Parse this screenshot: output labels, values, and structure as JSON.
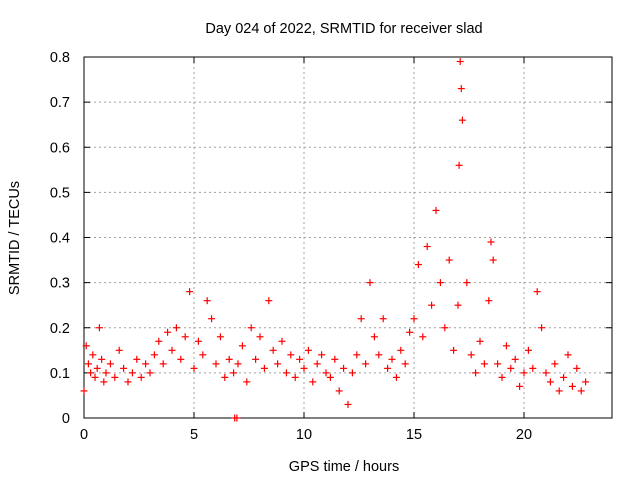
{
  "chart_data": {
    "type": "scatter",
    "title": "Day 024 of 2022, SRMTID for receiver slad",
    "xlabel": "GPS time / hours",
    "ylabel": "SRMTID / TECUs",
    "xlim": [
      0,
      24
    ],
    "ylim": [
      0,
      0.8
    ],
    "x_ticks": [
      0,
      5,
      10,
      15,
      20
    ],
    "x_tick_labels": [
      "0",
      "5",
      "10",
      "15",
      "20"
    ],
    "y_ticks": [
      0,
      0.1,
      0.2,
      0.3,
      0.4,
      0.5,
      0.6,
      0.7,
      0.8
    ],
    "y_tick_labels": [
      "0",
      "0.1",
      "0.2",
      "0.3",
      "0.4",
      "0.5",
      "0.6",
      "0.7",
      "0.8"
    ],
    "grid": true,
    "marker": "plus",
    "color": "#ff0000",
    "series": [
      {
        "name": "SRMTID",
        "x": [
          0.0,
          0.1,
          0.2,
          0.3,
          0.4,
          0.5,
          0.6,
          0.7,
          0.8,
          0.9,
          1.0,
          1.2,
          1.4,
          1.6,
          1.8,
          2.0,
          2.2,
          2.4,
          2.6,
          2.8,
          3.0,
          3.2,
          3.4,
          3.6,
          3.8,
          4.0,
          4.2,
          4.4,
          4.6,
          4.8,
          5.0,
          5.2,
          5.4,
          5.6,
          5.8,
          6.0,
          6.2,
          6.4,
          6.6,
          6.8,
          6.85,
          6.95,
          7.0,
          7.2,
          7.4,
          7.6,
          7.8,
          8.0,
          8.2,
          8.4,
          8.6,
          8.8,
          9.0,
          9.2,
          9.4,
          9.6,
          9.8,
          10.0,
          10.2,
          10.4,
          10.6,
          10.8,
          11.0,
          11.2,
          11.4,
          11.6,
          11.8,
          12.0,
          12.2,
          12.4,
          12.6,
          12.8,
          13.0,
          13.2,
          13.4,
          13.6,
          13.8,
          14.0,
          14.2,
          14.4,
          14.6,
          14.8,
          15.0,
          15.2,
          15.4,
          15.6,
          15.8,
          16.0,
          16.2,
          16.4,
          16.6,
          16.8,
          17.0,
          17.05,
          17.1,
          17.15,
          17.2,
          17.4,
          17.6,
          17.8,
          18.0,
          18.2,
          18.4,
          18.5,
          18.6,
          18.8,
          19.0,
          19.2,
          19.4,
          19.6,
          19.8,
          20.0,
          20.2,
          20.4,
          20.6,
          20.8,
          21.0,
          21.2,
          21.4,
          21.6,
          21.8,
          22.0,
          22.2,
          22.4,
          22.6,
          22.8
        ],
        "y": [
          0.06,
          0.16,
          0.12,
          0.1,
          0.14,
          0.09,
          0.11,
          0.2,
          0.13,
          0.08,
          0.1,
          0.12,
          0.09,
          0.15,
          0.11,
          0.08,
          0.1,
          0.13,
          0.09,
          0.12,
          0.1,
          0.14,
          0.17,
          0.12,
          0.19,
          0.15,
          0.2,
          0.13,
          0.18,
          0.28,
          0.11,
          0.17,
          0.14,
          0.26,
          0.22,
          0.12,
          0.18,
          0.09,
          0.13,
          0.1,
          0.0,
          0.0,
          0.12,
          0.16,
          0.08,
          0.2,
          0.13,
          0.18,
          0.11,
          0.26,
          0.15,
          0.12,
          0.17,
          0.1,
          0.14,
          0.09,
          0.13,
          0.11,
          0.15,
          0.08,
          0.12,
          0.14,
          0.1,
          0.09,
          0.13,
          0.06,
          0.11,
          0.03,
          0.1,
          0.14,
          0.22,
          0.12,
          0.3,
          0.18,
          0.14,
          0.22,
          0.11,
          0.13,
          0.09,
          0.15,
          0.12,
          0.19,
          0.22,
          0.34,
          0.18,
          0.38,
          0.25,
          0.46,
          0.3,
          0.2,
          0.35,
          0.15,
          0.25,
          0.56,
          0.79,
          0.73,
          0.66,
          0.3,
          0.14,
          0.1,
          0.17,
          0.12,
          0.26,
          0.39,
          0.35,
          0.12,
          0.09,
          0.16,
          0.11,
          0.13,
          0.07,
          0.1,
          0.15,
          0.11,
          0.28,
          0.2,
          0.1,
          0.08,
          0.12,
          0.06,
          0.09,
          0.14,
          0.07,
          0.11,
          0.06,
          0.08
        ]
      }
    ]
  }
}
